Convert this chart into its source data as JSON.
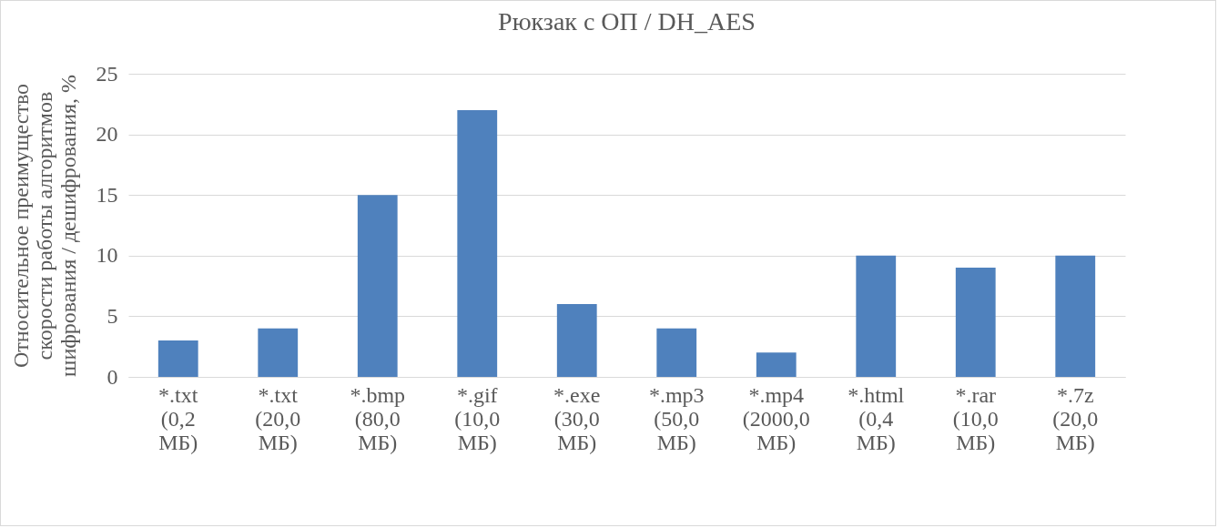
{
  "chart_data": {
    "type": "bar",
    "title": "Рюкзак с ОП / DH_AES",
    "ylabel": "Относительное преимущество скорости работы алгоритмов шифрования / дешифрования, %",
    "categories": [
      "*.txt (0,2 МБ)",
      "*.txt (20,0 МБ)",
      "*.bmp (80,0 МБ)",
      "*.gif (10,0 МБ)",
      "*.exe (30,0 МБ)",
      "*.mp3 (50,0 МБ)",
      "*.mp4 (2000,0 МБ)",
      "*.html (0,4 МБ)",
      "*.rar (10,0 МБ)",
      "*.7z (20,0 МБ)"
    ],
    "values": [
      3,
      4,
      15,
      22,
      6,
      4,
      2,
      10,
      9,
      10
    ],
    "color": "#4f81bd",
    "ylim": [
      0,
      25
    ],
    "yticks": [
      0,
      5,
      10,
      15,
      20,
      25
    ],
    "grid": "y"
  }
}
